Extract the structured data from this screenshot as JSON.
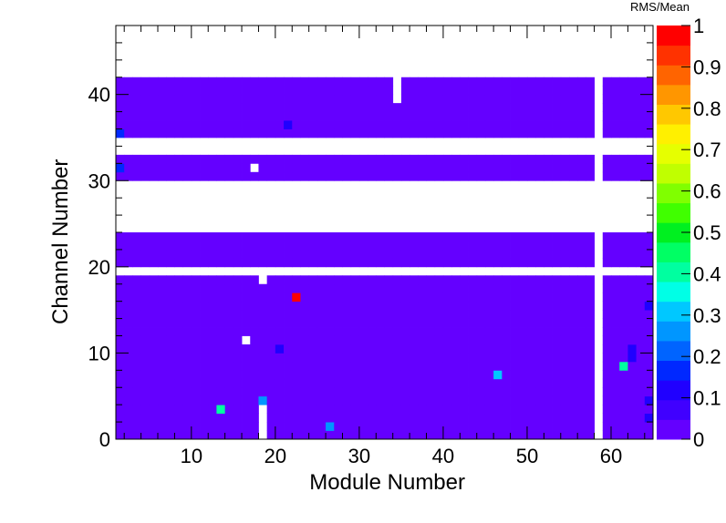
{
  "chart_data": {
    "type": "heatmap",
    "title": "",
    "xlabel": "Module Number",
    "ylabel": "Channel Number",
    "zlabel": "RMS/Mean",
    "xlim": [
      1,
      65
    ],
    "ylim": [
      0,
      48
    ],
    "zlim": [
      0,
      1
    ],
    "x_ticks": [
      10,
      20,
      30,
      40,
      50,
      60
    ],
    "y_ticks": [
      0,
      10,
      20,
      30,
      40
    ],
    "z_ticks": [
      "0",
      "0.1",
      "0.2",
      "0.3",
      "0.4",
      "0.5",
      "0.6",
      "0.7",
      "0.8",
      "0.9",
      "1"
    ],
    "default_value": 0.02,
    "filled_channel_bands": [
      [
        0,
        18
      ],
      [
        18,
        19
      ],
      [
        20,
        24
      ],
      [
        30,
        33
      ],
      [
        35,
        42
      ]
    ],
    "empty_modules_all_channels": [
      58
    ],
    "empty_cells": [
      {
        "module": 34,
        "channels": [
          39,
          40,
          41
        ]
      },
      {
        "module": 18,
        "channels": [
          0,
          1,
          2,
          3,
          18
        ]
      },
      {
        "module": 17,
        "channels": [
          31
        ]
      },
      {
        "module": 16,
        "channels": [
          11
        ]
      }
    ],
    "hot_cells": [
      {
        "module": 22,
        "channel": 16,
        "value": 1.0
      },
      {
        "module": 13,
        "channel": 3,
        "value": 0.4
      },
      {
        "module": 61,
        "channel": 8,
        "value": 0.4
      },
      {
        "module": 46,
        "channel": 7,
        "value": 0.3
      },
      {
        "module": 18,
        "channel": 4,
        "value": 0.28
      },
      {
        "module": 26,
        "channel": 1,
        "value": 0.25
      },
      {
        "module": 1,
        "channel": 35,
        "value": 0.18
      },
      {
        "module": 1,
        "channel": 31,
        "value": 0.15
      },
      {
        "module": 21,
        "channel": 36,
        "value": 0.12
      },
      {
        "module": 20,
        "channel": 10,
        "value": 0.1
      },
      {
        "module": 62,
        "channel": 10,
        "value": 0.12
      },
      {
        "module": 62,
        "channel": 9,
        "value": 0.1
      },
      {
        "module": 64,
        "channel": 15,
        "value": 0.1
      },
      {
        "module": 64,
        "channel": 4,
        "value": 0.1
      },
      {
        "module": 64,
        "channel": 2,
        "value": 0.1
      }
    ],
    "palette": [
      "#6400FF",
      "#4000FF",
      "#2000FF",
      "#0028FF",
      "#0064FF",
      "#0096FF",
      "#00C8FF",
      "#00FFE6",
      "#00FFA0",
      "#00FF64",
      "#00F020",
      "#40FF00",
      "#80FF00",
      "#C0FF00",
      "#E6FF00",
      "#FFF000",
      "#FFC800",
      "#FF9600",
      "#FF6400",
      "#FF3200",
      "#FF0000"
    ],
    "grid": false,
    "legend": "colorbar-right"
  }
}
